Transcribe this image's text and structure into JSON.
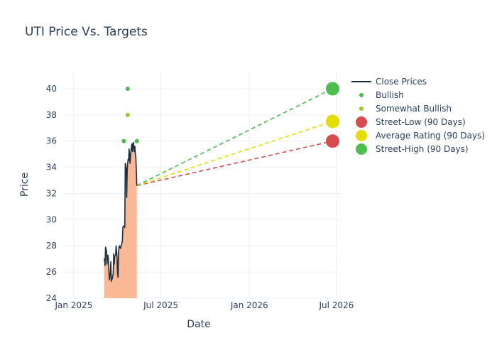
{
  "chart_data": {
    "type": "line",
    "title": "UTI Price Vs. Targets",
    "xlabel": "Date",
    "ylabel": "Price",
    "xlim": [
      "2024-12-10",
      "2026-07-10"
    ],
    "ylim": [
      24,
      41.3
    ],
    "x_ticks": [
      {
        "date": "2025-01-01",
        "label": "Jan 2025"
      },
      {
        "date": "2025-07-01",
        "label": "Jul 2025"
      },
      {
        "date": "2026-01-01",
        "label": "Jan 2026"
      },
      {
        "date": "2026-07-01",
        "label": "Jul 2026"
      }
    ],
    "y_ticks": [
      24,
      26,
      28,
      30,
      32,
      34,
      36,
      38,
      40
    ],
    "grid": true,
    "legend_position": "top-right",
    "close_prices": {
      "name": "Close Prices",
      "color": "#1f2d3d",
      "fill_color": "#fbb894",
      "points": [
        [
          "2025-03-05",
          26.9
        ],
        [
          "2025-03-06",
          27.0
        ],
        [
          "2025-03-07",
          26.5
        ],
        [
          "2025-03-08",
          27.9
        ],
        [
          "2025-03-10",
          27.6
        ],
        [
          "2025-03-11",
          26.6
        ],
        [
          "2025-03-12",
          27.0
        ],
        [
          "2025-03-13",
          27.3
        ],
        [
          "2025-03-14",
          26.9
        ],
        [
          "2025-03-16",
          25.4
        ],
        [
          "2025-03-18",
          25.9
        ],
        [
          "2025-03-19",
          26.8
        ],
        [
          "2025-03-20",
          25.3
        ],
        [
          "2025-03-22",
          25.5
        ],
        [
          "2025-03-24",
          25.9
        ],
        [
          "2025-03-25",
          27.4
        ],
        [
          "2025-03-26",
          26.6
        ],
        [
          "2025-03-27",
          27.2
        ],
        [
          "2025-03-29",
          27.3
        ],
        [
          "2025-03-30",
          28.0
        ],
        [
          "2025-03-31",
          27.6
        ],
        [
          "2025-04-01",
          27.1
        ],
        [
          "2025-04-02",
          25.9
        ],
        [
          "2025-04-03",
          25.6
        ],
        [
          "2025-04-04",
          27.5
        ],
        [
          "2025-04-05",
          27.9
        ],
        [
          "2025-04-06",
          28.0
        ],
        [
          "2025-04-08",
          27.8
        ],
        [
          "2025-04-09",
          28.0
        ],
        [
          "2025-04-10",
          28.0
        ],
        [
          "2025-04-12",
          28.4
        ],
        [
          "2025-04-13",
          29.4
        ],
        [
          "2025-04-14",
          29.5
        ],
        [
          "2025-04-16",
          29.5
        ],
        [
          "2025-04-17",
          29.4
        ],
        [
          "2025-04-18",
          34.3
        ],
        [
          "2025-04-19",
          34.2
        ],
        [
          "2025-04-20",
          33.9
        ],
        [
          "2025-04-21",
          31.7
        ],
        [
          "2025-04-22",
          33.6
        ],
        [
          "2025-04-23",
          34.3
        ],
        [
          "2025-04-24",
          34.6
        ],
        [
          "2025-04-25",
          34.5
        ],
        [
          "2025-04-26",
          35.4
        ],
        [
          "2025-04-27",
          34.9
        ],
        [
          "2025-04-28",
          34.3
        ],
        [
          "2025-04-29",
          34.9
        ],
        [
          "2025-04-30",
          35.3
        ],
        [
          "2025-05-01",
          35.6
        ],
        [
          "2025-05-02",
          35.8
        ],
        [
          "2025-05-03",
          35.2
        ],
        [
          "2025-05-04",
          35.7
        ],
        [
          "2025-05-05",
          35.9
        ],
        [
          "2025-05-06",
          35.5
        ],
        [
          "2025-05-07",
          35.2
        ],
        [
          "2025-05-08",
          35.6
        ],
        [
          "2025-05-09",
          35.0
        ],
        [
          "2025-05-10",
          34.8
        ],
        [
          "2025-05-11",
          33.8
        ],
        [
          "2025-05-12",
          32.6
        ]
      ]
    },
    "bullish": {
      "name": "Bullish",
      "color": "#4db848",
      "points": [
        [
          "2025-04-15",
          36
        ],
        [
          "2025-04-23",
          40
        ],
        [
          "2025-05-12",
          36
        ]
      ]
    },
    "somewhat_bullish": {
      "name": "Somewhat Bullish",
      "color": "#8fce2a",
      "points": [
        [
          "2025-04-23",
          38
        ]
      ]
    },
    "target_lines": {
      "start": [
        "2025-05-12",
        32.6
      ],
      "end_date": "2026-06-23"
    },
    "targets": [
      {
        "name": "Street-Low (90 Days)",
        "value": 36,
        "color": "#d64d4d"
      },
      {
        "name": "Average Rating (90 Days)",
        "value": 37.5,
        "color": "#e3de00"
      },
      {
        "name": "Street-High (90 Days)",
        "value": 40,
        "color": "#4dbd4d"
      }
    ]
  }
}
